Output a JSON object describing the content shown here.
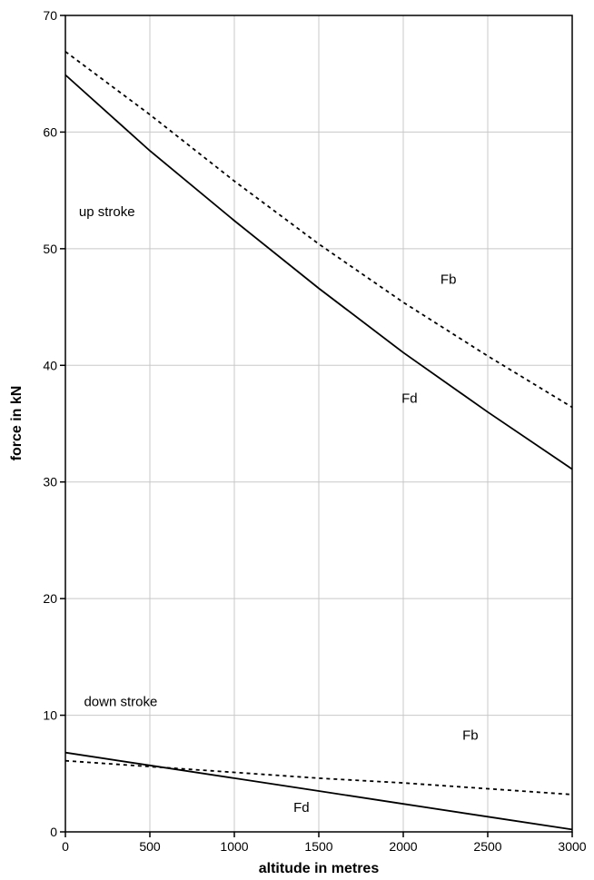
{
  "chart_data": {
    "type": "line",
    "xlabel": "altitude in metres",
    "ylabel": "force in kN",
    "xlim": [
      0,
      3000
    ],
    "ylim": [
      0,
      70
    ],
    "xticks": [
      0,
      500,
      1000,
      1500,
      2000,
      2500,
      3000
    ],
    "yticks": [
      0,
      10,
      20,
      30,
      40,
      50,
      60,
      70
    ],
    "grid": true,
    "series": [
      {
        "group": "up stroke",
        "name": "Fb",
        "style": "dashed",
        "x": [
          0,
          500,
          1000,
          1500,
          2000,
          2500,
          3000
        ],
        "y": [
          66.9,
          61.5,
          55.8,
          50.4,
          45.4,
          40.8,
          36.4
        ]
      },
      {
        "group": "up stroke",
        "name": "Fd",
        "style": "solid",
        "x": [
          0,
          500,
          1000,
          1500,
          2000,
          2500,
          3000
        ],
        "y": [
          64.9,
          58.4,
          52.4,
          46.6,
          41.1,
          36.0,
          31.1
        ]
      },
      {
        "group": "down stroke",
        "name": "Fb",
        "style": "dashed",
        "x": [
          0,
          500,
          1000,
          1500,
          2000,
          2500,
          3000
        ],
        "y": [
          6.1,
          5.6,
          5.1,
          4.6,
          4.2,
          3.7,
          3.2
        ]
      },
      {
        "group": "down stroke",
        "name": "Fd",
        "style": "solid",
        "x": [
          0,
          500,
          1000,
          1500,
          2000,
          2500,
          3000
        ],
        "y": [
          6.8,
          5.7,
          4.6,
          3.5,
          2.4,
          1.3,
          0.2
        ]
      }
    ],
    "annotations": [
      {
        "text": "up stroke",
        "x": 80,
        "y": 52.8
      },
      {
        "text": "Fb",
        "x": 2220,
        "y": 47.0
      },
      {
        "text": "Fd",
        "x": 1990,
        "y": 36.8
      },
      {
        "text": "down stroke",
        "x": 110,
        "y": 10.8
      },
      {
        "text": "Fb",
        "x": 2350,
        "y": 7.9
      },
      {
        "text": "Fd",
        "x": 1350,
        "y": 1.7
      }
    ]
  }
}
